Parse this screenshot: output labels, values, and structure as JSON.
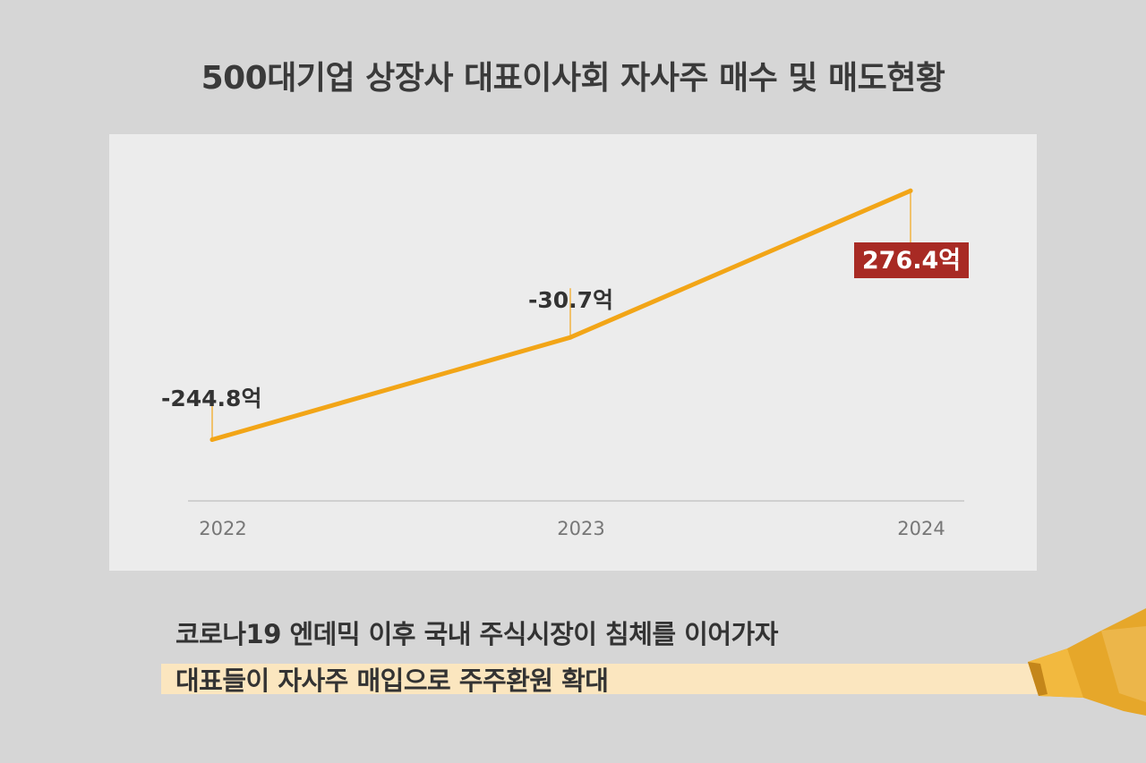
{
  "title": "500대기업 상장사 대표이사회 자사주 매수 및 매도현황",
  "caption": {
    "line1": "코로나19 엔데믹 이후 국내 주식시장이 침체를 이어가자",
    "line2": "대표들이 자사주 매입으로 주주환원 확대"
  },
  "colors": {
    "line": "#f2a517",
    "highlight_label": "#a82a24",
    "highlight_bg": "#fbe6bf"
  },
  "chart_data": {
    "type": "line",
    "title": "500대기업 상장사 대표이사회 자사주 매수 및 매도현황",
    "x": [
      "2022",
      "2023",
      "2024"
    ],
    "series": [
      {
        "values": [
          -244.8,
          -30.7,
          276.4
        ]
      }
    ],
    "data_labels": [
      "-244.8억",
      "-30.7억",
      "276.4억"
    ],
    "unit": "억",
    "ylim": [
      -300,
      320
    ],
    "grid": false,
    "highlighted_point": "2024"
  }
}
